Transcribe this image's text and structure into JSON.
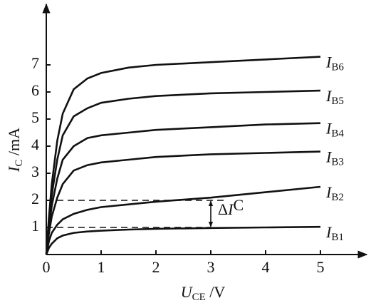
{
  "chart_data": {
    "type": "line",
    "x_label": "UCE /V",
    "y_label": "IC /mA",
    "x": [
      0,
      0.05,
      0.1,
      0.2,
      0.3,
      0.5,
      0.75,
      1,
      1.5,
      2,
      3,
      4,
      5
    ],
    "series": [
      {
        "name": "IB1",
        "color": "#111111",
        "values": [
          0,
          0.25,
          0.4,
          0.6,
          0.7,
          0.8,
          0.85,
          0.88,
          0.92,
          0.95,
          0.98,
          1.0,
          1.02
        ]
      },
      {
        "name": "IB2",
        "color": "#111111",
        "values": [
          0,
          0.5,
          0.8,
          1.1,
          1.3,
          1.5,
          1.65,
          1.75,
          1.85,
          1.95,
          2.1,
          2.3,
          2.5
        ]
      },
      {
        "name": "IB3",
        "color": "#111111",
        "values": [
          0,
          0.8,
          1.4,
          2.1,
          2.6,
          3.1,
          3.3,
          3.4,
          3.5,
          3.6,
          3.7,
          3.75,
          3.8
        ]
      },
      {
        "name": "IB4",
        "color": "#111111",
        "values": [
          0,
          1.0,
          1.8,
          2.8,
          3.5,
          4.0,
          4.3,
          4.4,
          4.5,
          4.6,
          4.7,
          4.8,
          4.85
        ]
      },
      {
        "name": "IB5",
        "color": "#111111",
        "values": [
          0,
          1.2,
          2.2,
          3.5,
          4.4,
          5.1,
          5.4,
          5.6,
          5.75,
          5.85,
          5.95,
          6.0,
          6.05
        ]
      },
      {
        "name": "IB6",
        "color": "#111111",
        "values": [
          0,
          1.4,
          2.6,
          4.2,
          5.2,
          6.1,
          6.5,
          6.7,
          6.9,
          7.0,
          7.1,
          7.2,
          7.3
        ]
      }
    ],
    "xlim": [
      0,
      5.85
    ],
    "ylim": [
      0,
      9.2
    ],
    "xticks": [
      0,
      1,
      2,
      3,
      4,
      5
    ],
    "yticks": [
      1,
      2,
      3,
      4,
      5,
      6,
      7
    ],
    "annotation": {
      "text": "ΔIC",
      "x": 3,
      "from": 1,
      "to": 2
    }
  }
}
